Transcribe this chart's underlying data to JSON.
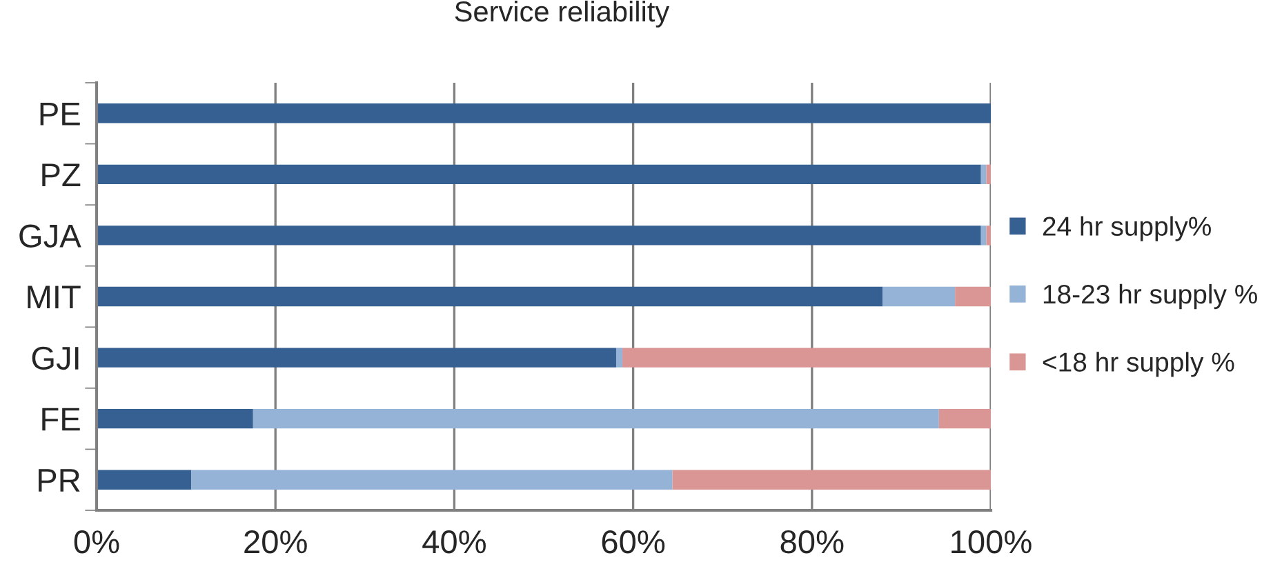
{
  "chart_data": {
    "type": "bar",
    "title": "Service reliability",
    "orientation": "horizontal",
    "stacked": true,
    "categories": [
      "PE",
      "PZ",
      "GJA",
      "MIT",
      "GJI",
      "FE",
      "PR"
    ],
    "series": [
      {
        "name": "24 hr supply%",
        "color": "#366092",
        "values": [
          100,
          98.9,
          98.9,
          87.9,
          58.1,
          17.5,
          10.6
        ]
      },
      {
        "name": "18-23 hr supply %",
        "color": "#95b3d7",
        "values": [
          0,
          0.6,
          0.6,
          8.1,
          0.7,
          76.7,
          53.8
        ]
      },
      {
        "name": "<18 hr supply %",
        "color": "#da9694",
        "values": [
          0,
          0.5,
          0.5,
          4.0,
          41.2,
          5.8,
          35.6
        ]
      }
    ],
    "xlim": [
      0,
      100
    ],
    "xticks": [
      {
        "value": 0,
        "label": "0%"
      },
      {
        "value": 20,
        "label": "20%"
      },
      {
        "value": 40,
        "label": "40%"
      },
      {
        "value": 60,
        "label": "60%"
      },
      {
        "value": 80,
        "label": "80%"
      },
      {
        "value": 100,
        "label": "100%"
      }
    ],
    "grid": "x",
    "legend": "right"
  }
}
